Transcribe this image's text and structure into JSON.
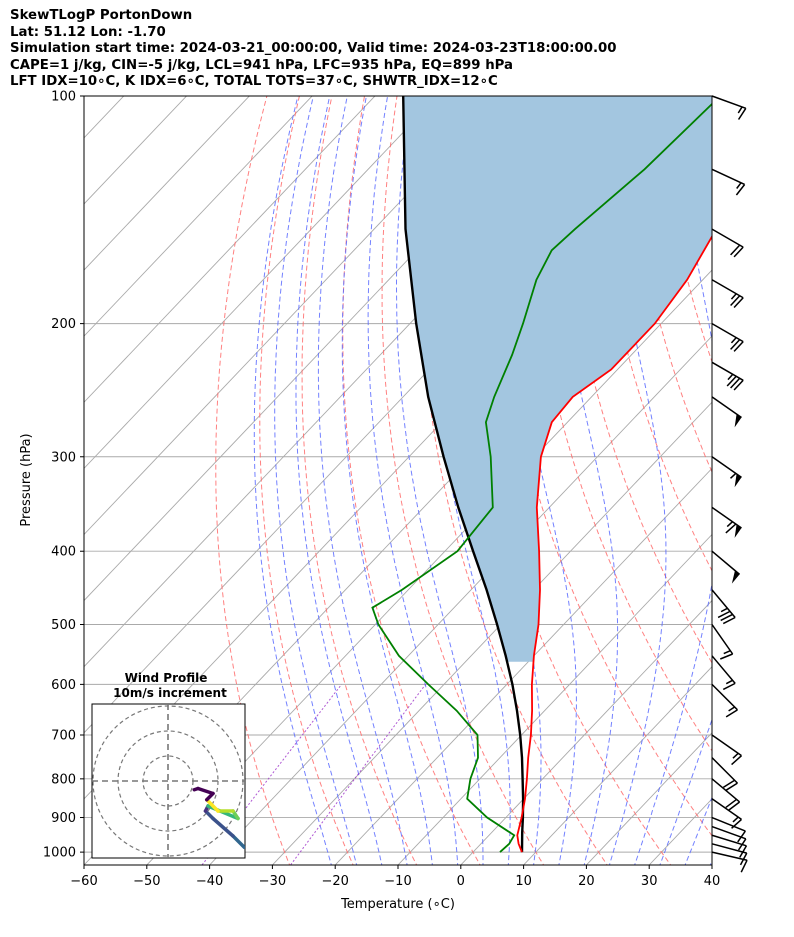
{
  "header": {
    "line1": "SkewTLogP PortonDown",
    "line2": "Lat: 51.12   Lon: -1.70",
    "line3": "Simulation start time: 2024-03-21_00:00:00, Valid time: 2024-03-23T18:00:00.00",
    "line4": "CAPE=1 j/kg, CIN=-5 j/kg, LCL=941 hPa, LFC=935 hPa, EQ=899 hPa",
    "line5": "LFT IDX=10∘C, K IDX=6∘C, TOTAL TOTS=37∘C, SHWTR_IDX=12∘C"
  },
  "colors": {
    "temperature": "#ff0000",
    "dewpoint": "#008000",
    "parcel": "#000000",
    "cape_fill": "#a3c6e0",
    "dry_adiabat": "#ff6b6b",
    "moist_adiabat": "#5b6bff",
    "isotherm": "#aaaaaa",
    "isobar": "#aaaaaa",
    "mixing_ratio": "#9b30c8"
  },
  "chart_data": {
    "type": "skewt",
    "xlabel": "Temperature (∘C)",
    "ylabel": "Pressure (hPa)",
    "xlim": [
      -60,
      40
    ],
    "ylim": [
      1040,
      100
    ],
    "x_ticks": [
      "−60",
      "−50",
      "−40",
      "−30",
      "−20",
      "−10",
      "0",
      "10",
      "20",
      "30",
      "40"
    ],
    "y_ticks": [
      "100",
      "200",
      "300",
      "400",
      "500",
      "600",
      "700",
      "800",
      "900",
      "1000"
    ],
    "grid": true,
    "temperature_profile": [
      {
        "p": 1000,
        "t": 7.8
      },
      {
        "p": 975,
        "t": 6.0
      },
      {
        "p": 950,
        "t": 4.5
      },
      {
        "p": 900,
        "t": 2.5
      },
      {
        "p": 850,
        "t": 0.2
      },
      {
        "p": 800,
        "t": -2.5
      },
      {
        "p": 750,
        "t": -5.5
      },
      {
        "p": 700,
        "t": -8.5
      },
      {
        "p": 650,
        "t": -12.0
      },
      {
        "p": 600,
        "t": -16.0
      },
      {
        "p": 550,
        "t": -20.0
      },
      {
        "p": 500,
        "t": -24.0
      },
      {
        "p": 450,
        "t": -29.0
      },
      {
        "p": 400,
        "t": -35.0
      },
      {
        "p": 350,
        "t": -42.0
      },
      {
        "p": 300,
        "t": -49.0
      },
      {
        "p": 270,
        "t": -52.5
      },
      {
        "p": 250,
        "t": -53.0
      },
      {
        "p": 230,
        "t": -51.0
      },
      {
        "p": 200,
        "t": -51.0
      },
      {
        "p": 175,
        "t": -52.5
      },
      {
        "p": 150,
        "t": -55.5
      },
      {
        "p": 125,
        "t": -58.0
      },
      {
        "p": 100,
        "t": -61.0
      }
    ],
    "dewpoint_profile": [
      {
        "p": 1000,
        "t": 4.3
      },
      {
        "p": 975,
        "t": 4.5
      },
      {
        "p": 950,
        "t": 4.0
      },
      {
        "p": 900,
        "t": -3.0
      },
      {
        "p": 850,
        "t": -9.0
      },
      {
        "p": 800,
        "t": -11.5
      },
      {
        "p": 750,
        "t": -13.5
      },
      {
        "p": 700,
        "t": -17.0
      },
      {
        "p": 650,
        "t": -24.0
      },
      {
        "p": 600,
        "t": -32.5
      },
      {
        "p": 550,
        "t": -41.5
      },
      {
        "p": 500,
        "t": -49.5
      },
      {
        "p": 475,
        "t": -53.0
      },
      {
        "p": 450,
        "t": -51.0
      },
      {
        "p": 400,
        "t": -48.0
      },
      {
        "p": 350,
        "t": -49.0
      },
      {
        "p": 300,
        "t": -57.0
      },
      {
        "p": 270,
        "t": -63.0
      },
      {
        "p": 250,
        "t": -65.5
      },
      {
        "p": 220,
        "t": -69.0
      },
      {
        "p": 200,
        "t": -72.0
      },
      {
        "p": 175,
        "t": -76.5
      },
      {
        "p": 160,
        "t": -78.5
      },
      {
        "p": 150,
        "t": -78.0
      },
      {
        "p": 125,
        "t": -76.0
      },
      {
        "p": 100,
        "t": -75.0
      }
    ],
    "parcel_profile": [
      {
        "p": 1000,
        "t": 7.8
      },
      {
        "p": 941,
        "t": 4.8
      },
      {
        "p": 900,
        "t": 2.7
      },
      {
        "p": 850,
        "t": -0.1
      },
      {
        "p": 800,
        "t": -3.2
      },
      {
        "p": 750,
        "t": -6.5
      },
      {
        "p": 700,
        "t": -10.2
      },
      {
        "p": 650,
        "t": -14.4
      },
      {
        "p": 600,
        "t": -19.1
      },
      {
        "p": 550,
        "t": -24.5
      },
      {
        "p": 500,
        "t": -30.6
      },
      {
        "p": 450,
        "t": -37.5
      },
      {
        "p": 400,
        "t": -45.5
      },
      {
        "p": 350,
        "t": -54.5
      },
      {
        "p": 300,
        "t": -64.5
      },
      {
        "p": 250,
        "t": -76.0
      },
      {
        "p": 200,
        "t": -89.0
      },
      {
        "p": 150,
        "t": -105.0
      },
      {
        "p": 100,
        "t": -125.5
      }
    ],
    "wind_barbs": [
      {
        "p": 1000,
        "speed_kt": 10,
        "dir_deg": 283
      },
      {
        "p": 975,
        "speed_kt": 10,
        "dir_deg": 285
      },
      {
        "p": 950,
        "speed_kt": 10,
        "dir_deg": 287
      },
      {
        "p": 925,
        "speed_kt": 10,
        "dir_deg": 290
      },
      {
        "p": 900,
        "speed_kt": 10,
        "dir_deg": 292
      },
      {
        "p": 850,
        "speed_kt": 15,
        "dir_deg": 305
      },
      {
        "p": 800,
        "speed_kt": 20,
        "dir_deg": 310
      },
      {
        "p": 750,
        "speed_kt": 20,
        "dir_deg": 315
      },
      {
        "p": 700,
        "speed_kt": 15,
        "dir_deg": 305
      },
      {
        "p": 600,
        "speed_kt": 15,
        "dir_deg": 315
      },
      {
        "p": 550,
        "speed_kt": 15,
        "dir_deg": 320
      },
      {
        "p": 500,
        "speed_kt": 15,
        "dir_deg": 325
      },
      {
        "p": 450,
        "speed_kt": 35,
        "dir_deg": 320
      },
      {
        "p": 400,
        "speed_kt": 50,
        "dir_deg": 310
      },
      {
        "p": 350,
        "speed_kt": 65,
        "dir_deg": 305
      },
      {
        "p": 300,
        "speed_kt": 55,
        "dir_deg": 305
      },
      {
        "p": 250,
        "speed_kt": 50,
        "dir_deg": 305
      },
      {
        "p": 225,
        "speed_kt": 35,
        "dir_deg": 300
      },
      {
        "p": 200,
        "speed_kt": 25,
        "dir_deg": 300
      },
      {
        "p": 175,
        "speed_kt": 25,
        "dir_deg": 300
      },
      {
        "p": 150,
        "speed_kt": 20,
        "dir_deg": 300
      },
      {
        "p": 125,
        "speed_kt": 15,
        "dir_deg": 295
      },
      {
        "p": 100,
        "speed_kt": 15,
        "dir_deg": 290
      }
    ],
    "hodograph": {
      "title": "Wind Profile",
      "subtitle": "10m/s increment",
      "rings_ms": [
        10,
        20,
        30
      ],
      "trace": [
        {
          "u": 30.5,
          "v": -26.5,
          "color": "#31668e"
        },
        {
          "u": 26.0,
          "v": -22.0,
          "color": "#31668e"
        },
        {
          "u": 18.0,
          "v": -15.0,
          "color": "#3b528b"
        },
        {
          "u": 15.0,
          "v": -12.0,
          "color": "#3b528b"
        },
        {
          "u": 16.0,
          "v": -10.0,
          "color": "#46327e"
        },
        {
          "u": 28.0,
          "v": -15.0,
          "color": "#35b779"
        },
        {
          "u": 26.0,
          "v": -12.0,
          "color": "#6ece58"
        },
        {
          "u": 20.0,
          "v": -12.0,
          "color": "#b5de2b"
        },
        {
          "u": 15.5,
          "v": -7.5,
          "color": "#fde725"
        },
        {
          "u": 18.0,
          "v": -5.0,
          "color": "#440154"
        },
        {
          "u": 12.0,
          "v": -3.0,
          "color": "#440154"
        },
        {
          "u": 10.5,
          "v": -3.5,
          "color": "#440154"
        }
      ]
    }
  }
}
